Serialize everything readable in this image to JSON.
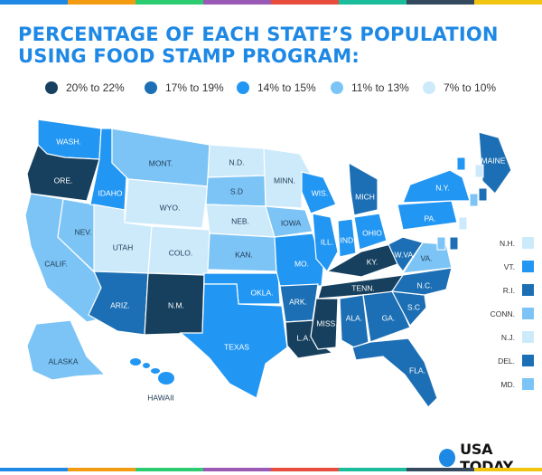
{
  "title_line1": "PERCENTAGE OF EACH STATE’S POPULATION",
  "title_line2": "USING FOOD STAMP PROGRAM:",
  "legend": [
    {
      "label": "20% to 22%",
      "color": "#17405e"
    },
    {
      "label": "17% to 19%",
      "color": "#1c6fb4"
    },
    {
      "label": "14% to 15%",
      "color": "#2196f3"
    },
    {
      "label": "11% to 13%",
      "color": "#7cc4f5"
    },
    {
      "label": "7% to 10%",
      "color": "#cdeafb"
    }
  ],
  "palette": {
    "tier1": "#17405e",
    "tier2": "#1c6fb4",
    "tier3": "#2196f3",
    "tier4": "#7cc4f5",
    "tier5": "#cdeafb"
  },
  "states": [
    {
      "name": "WASH.",
      "tier": 3
    },
    {
      "name": "ORE.",
      "tier": 1
    },
    {
      "name": "CALIF.",
      "tier": 4
    },
    {
      "name": "NEV.",
      "tier": 4
    },
    {
      "name": "IDAHO",
      "tier": 3
    },
    {
      "name": "MONT.",
      "tier": 4
    },
    {
      "name": "WYO.",
      "tier": 5
    },
    {
      "name": "UTAH",
      "tier": 5
    },
    {
      "name": "ARIZ.",
      "tier": 2
    },
    {
      "name": "COLO.",
      "tier": 5
    },
    {
      "name": "N.M.",
      "tier": 1
    },
    {
      "name": "N.D.",
      "tier": 5
    },
    {
      "name": "S.D",
      "tier": 4
    },
    {
      "name": "NEB.",
      "tier": 5
    },
    {
      "name": "KAN.",
      "tier": 4
    },
    {
      "name": "OKLA.",
      "tier": 3
    },
    {
      "name": "TEXAS",
      "tier": 3
    },
    {
      "name": "MINN.",
      "tier": 5
    },
    {
      "name": "IOWA",
      "tier": 4
    },
    {
      "name": "MO.",
      "tier": 3
    },
    {
      "name": "ARK.",
      "tier": 2
    },
    {
      "name": "L.A.",
      "tier": 1
    },
    {
      "name": "WIS.",
      "tier": 3
    },
    {
      "name": "ILL.",
      "tier": 3
    },
    {
      "name": "MICH",
      "tier": 2
    },
    {
      "name": "IND.",
      "tier": 3
    },
    {
      "name": "OHIO",
      "tier": 3
    },
    {
      "name": "KY.",
      "tier": 1
    },
    {
      "name": "TENN.",
      "tier": 1
    },
    {
      "name": "MISS.",
      "tier": 1
    },
    {
      "name": "ALA.",
      "tier": 2
    },
    {
      "name": "GA.",
      "tier": 2
    },
    {
      "name": "FLA.",
      "tier": 2
    },
    {
      "name": "S.C",
      "tier": 2
    },
    {
      "name": "N.C.",
      "tier": 2
    },
    {
      "name": "VA.",
      "tier": 4
    },
    {
      "name": "W.VA.",
      "tier": 2
    },
    {
      "name": "PA.",
      "tier": 3
    },
    {
      "name": "N.Y.",
      "tier": 3
    },
    {
      "name": "MAINE",
      "tier": 2
    },
    {
      "name": "ALASKA",
      "tier": 4
    },
    {
      "name": "HAWAII",
      "tier": 3
    }
  ],
  "northeast_states": [
    {
      "name": "N.H.",
      "tier": 5
    },
    {
      "name": "VT.",
      "tier": 3
    },
    {
      "name": "R.I.",
      "tier": 2
    },
    {
      "name": "CONN.",
      "tier": 4
    },
    {
      "name": "N.J.",
      "tier": 5
    },
    {
      "name": "DEL.",
      "tier": 2
    },
    {
      "name": "MD.",
      "tier": 4
    }
  ],
  "logo_text": "USA TODAY",
  "stripe_colors": [
    "#1e88e5",
    "#f39c12",
    "#2ecc71",
    "#9b59b6",
    "#e74c3c",
    "#1abc9c",
    "#34495e",
    "#f1c40f"
  ]
}
